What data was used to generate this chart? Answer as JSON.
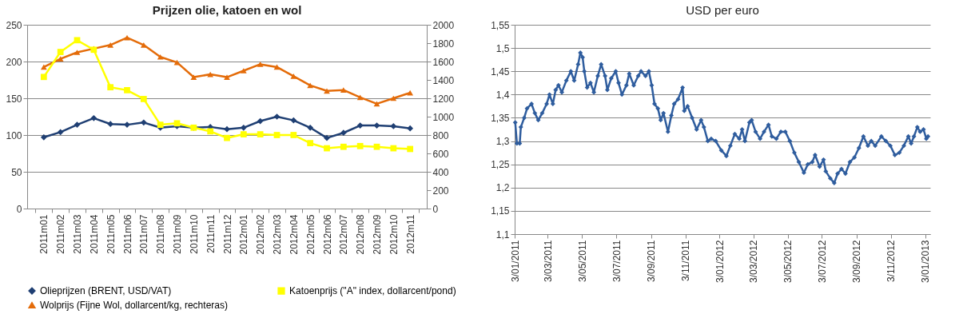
{
  "chart_data": [
    {
      "type": "line",
      "title": "Prijzen olie, katoen en wol",
      "categories": [
        "2011m01",
        "2011m02",
        "2011m03",
        "2011m04",
        "2011m05",
        "2011m06",
        "2011m07",
        "2011m08",
        "2011m09",
        "2011m10",
        "2011m11",
        "2011m12",
        "2012m01",
        "2012m02",
        "2012m03",
        "2012m04",
        "2012m05",
        "2012m06",
        "2012m07",
        "2012m08",
        "2012m09",
        "2012m10",
        "2012m11"
      ],
      "series": [
        {
          "name": "Olieprijzen (BRENT, USD/VAT)",
          "color": "#1f3f73",
          "marker": "diamond",
          "values": [
            97,
            104,
            114,
            123,
            115,
            114,
            117,
            110,
            112,
            110,
            111,
            108,
            110,
            119,
            125,
            120,
            110,
            96,
            103,
            113,
            113,
            112,
            109
          ]
        },
        {
          "name": "Katoenprijs (\"A\" index, dollarcent/pond)",
          "color": "#ffff00",
          "marker": "square",
          "values": [
            179,
            213,
            229,
            216,
            165,
            161,
            149,
            114,
            116,
            110,
            105,
            96,
            101,
            101,
            100,
            100,
            89,
            82,
            84,
            85,
            84,
            82,
            81
          ]
        },
        {
          "name": "Wolprijs (Fijne Wol, dollarcent/kg, rechteras)",
          "color": "#e46c0a",
          "marker": "triangle",
          "axis": "y2",
          "values": [
            1540,
            1630,
            1700,
            1740,
            1780,
            1860,
            1780,
            1650,
            1590,
            1430,
            1460,
            1430,
            1500,
            1570,
            1540,
            1440,
            1340,
            1280,
            1290,
            1210,
            1140,
            1200,
            1260
          ]
        }
      ],
      "ylim": [
        0,
        250
      ],
      "yticks": [
        0,
        50,
        100,
        150,
        200,
        250
      ],
      "y2lim": [
        0,
        2000
      ],
      "y2ticks": [
        0,
        200,
        400,
        600,
        800,
        1000,
        1200,
        1400,
        1600,
        1800,
        2000
      ],
      "grid": "y",
      "legend": "bottom"
    },
    {
      "type": "line",
      "title": "USD per euro",
      "x": [
        "2011-01-04",
        "2011-01-07",
        "2011-01-12",
        "2011-01-14",
        "2011-01-20",
        "2011-01-25",
        "2011-02-02",
        "2011-02-08",
        "2011-02-14",
        "2011-02-21",
        "2011-03-01",
        "2011-03-06",
        "2011-03-12",
        "2011-03-17",
        "2011-03-22",
        "2011-03-28",
        "2011-04-05",
        "2011-04-13",
        "2011-04-19",
        "2011-04-26",
        "2011-04-30",
        "2011-05-04",
        "2011-05-07",
        "2011-05-12",
        "2011-05-18",
        "2011-05-24",
        "2011-05-31",
        "2011-06-06",
        "2011-06-13",
        "2011-06-17",
        "2011-06-24",
        "2011-07-02",
        "2011-07-07",
        "2011-07-13",
        "2011-07-21",
        "2011-07-26",
        "2011-08-03",
        "2011-08-11",
        "2011-08-16",
        "2011-08-24",
        "2011-08-30",
        "2011-09-04",
        "2011-09-09",
        "2011-09-15",
        "2011-09-20",
        "2011-09-25",
        "2011-10-03",
        "2011-10-09",
        "2011-10-14",
        "2011-10-21",
        "2011-10-29",
        "2011-11-01",
        "2011-11-07",
        "2011-11-15",
        "2011-11-23",
        "2011-12-01",
        "2011-12-06",
        "2011-12-13",
        "2011-12-19",
        "2011-12-27",
        "2012-01-06",
        "2012-01-15",
        "2012-01-22",
        "2012-01-30",
        "2012-02-07",
        "2012-02-12",
        "2012-02-17",
        "2012-02-25",
        "2012-02-29",
        "2012-03-07",
        "2012-03-15",
        "2012-03-22",
        "2012-03-30",
        "2012-04-05",
        "2012-04-13",
        "2012-04-21",
        "2012-04-29",
        "2012-05-07",
        "2012-05-15",
        "2012-05-23",
        "2012-06-01",
        "2012-06-08",
        "2012-06-16",
        "2012-06-21",
        "2012-06-29",
        "2012-07-06",
        "2012-07-10",
        "2012-07-18",
        "2012-07-25",
        "2012-07-31",
        "2012-08-07",
        "2012-08-14",
        "2012-08-22",
        "2012-08-30",
        "2012-09-07",
        "2012-09-15",
        "2012-09-23",
        "2012-09-29",
        "2012-10-06",
        "2012-10-17",
        "2012-10-25",
        "2012-11-02",
        "2012-11-10",
        "2012-11-18",
        "2012-11-26",
        "2012-12-04",
        "2012-12-09",
        "2012-12-14",
        "2012-12-20",
        "2012-12-25",
        "2012-12-31",
        "2013-01-05",
        "2013-01-08"
      ],
      "series": [
        {
          "color": "#2f5d9e",
          "marker": "diamond",
          "values": [
            1.34,
            1.295,
            1.295,
            1.33,
            1.35,
            1.37,
            1.38,
            1.36,
            1.345,
            1.36,
            1.38,
            1.4,
            1.38,
            1.41,
            1.42,
            1.405,
            1.43,
            1.45,
            1.43,
            1.465,
            1.49,
            1.48,
            1.45,
            1.415,
            1.425,
            1.405,
            1.44,
            1.465,
            1.44,
            1.41,
            1.435,
            1.45,
            1.425,
            1.4,
            1.42,
            1.445,
            1.42,
            1.44,
            1.45,
            1.44,
            1.45,
            1.42,
            1.38,
            1.37,
            1.345,
            1.36,
            1.32,
            1.355,
            1.38,
            1.39,
            1.415,
            1.365,
            1.375,
            1.35,
            1.325,
            1.345,
            1.33,
            1.3,
            1.305,
            1.3,
            1.28,
            1.268,
            1.29,
            1.315,
            1.305,
            1.325,
            1.3,
            1.34,
            1.345,
            1.32,
            1.305,
            1.32,
            1.335,
            1.31,
            1.305,
            1.32,
            1.32,
            1.3,
            1.275,
            1.255,
            1.232,
            1.25,
            1.255,
            1.27,
            1.245,
            1.26,
            1.235,
            1.22,
            1.21,
            1.23,
            1.24,
            1.23,
            1.255,
            1.265,
            1.285,
            1.31,
            1.29,
            1.3,
            1.29,
            1.31,
            1.3,
            1.29,
            1.27,
            1.275,
            1.29,
            1.31,
            1.295,
            1.31,
            1.33,
            1.32,
            1.325,
            1.305,
            1.31
          ]
        }
      ],
      "xlim": [
        "2011-01-03",
        "2013-01-12"
      ],
      "xticks": [
        {
          "value": "2011-01-03",
          "label": "3/01/2011"
        },
        {
          "value": "2011-03-03",
          "label": "3/03/2011"
        },
        {
          "value": "2011-05-03",
          "label": "3/05/2011"
        },
        {
          "value": "2011-07-03",
          "label": "3/07/2011"
        },
        {
          "value": "2011-09-03",
          "label": "3/09/2011"
        },
        {
          "value": "2011-11-03",
          "label": "3/11/2011"
        },
        {
          "value": "2012-01-03",
          "label": "3/01/2012"
        },
        {
          "value": "2012-03-03",
          "label": "3/03/2012"
        },
        {
          "value": "2012-05-03",
          "label": "3/05/2012"
        },
        {
          "value": "2012-07-03",
          "label": "3/07/2012"
        },
        {
          "value": "2012-09-03",
          "label": "3/09/2012"
        },
        {
          "value": "2012-11-03",
          "label": "3/11/2012"
        },
        {
          "value": "2013-01-03",
          "label": "3/01/2013"
        }
      ],
      "ylim": [
        1.1,
        1.55
      ],
      "yticks": [
        {
          "value": 1.1,
          "label": "1,1"
        },
        {
          "value": 1.15,
          "label": "1,15"
        },
        {
          "value": 1.2,
          "label": "1,2"
        },
        {
          "value": 1.25,
          "label": "1,25"
        },
        {
          "value": 1.3,
          "label": "1,3"
        },
        {
          "value": 1.35,
          "label": "1,35"
        },
        {
          "value": 1.4,
          "label": "1,4"
        },
        {
          "value": 1.45,
          "label": "1,45"
        },
        {
          "value": 1.5,
          "label": "1,5"
        },
        {
          "value": 1.55,
          "label": "1,55"
        }
      ],
      "grid": "y"
    }
  ]
}
